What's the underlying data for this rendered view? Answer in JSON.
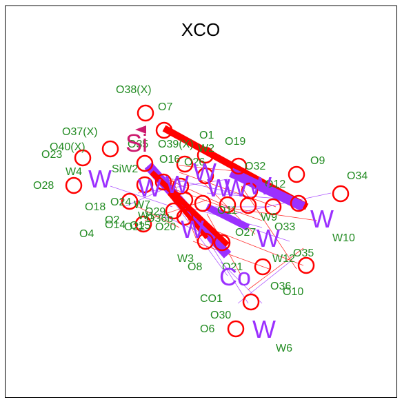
{
  "title": "XCO",
  "colors": {
    "oxygen_ring": "#ff0000",
    "label_green": "#228b22",
    "metal_purple": "#9b30ff",
    "silicon": "#cc1a6e",
    "bond_red": "#ff0000",
    "bond_purple": "#9b30ff"
  },
  "nodes": {
    "oxygen_labels": [
      "O38(X)",
      "O7",
      "O37(X)",
      "O40(X)",
      "O23",
      "O35",
      "O39(X)",
      "O1",
      "O19",
      "W2",
      "O16",
      "O26",
      "O32",
      "O9",
      "O34",
      "O12",
      "O28",
      "O18",
      "O24",
      "W7",
      "O14",
      "O2",
      "O22",
      "O4",
      "O15",
      "O29",
      "O20",
      "W1",
      "O11",
      "W9",
      "O33",
      "O27",
      "W12",
      "O35",
      "O36",
      "O10",
      "O21",
      "O8",
      "W3",
      "CO1",
      "O30",
      "O6",
      "W6",
      "W4",
      "W10",
      "SiW2",
      "O36b"
    ],
    "big_labels": [
      "W",
      "W",
      "W",
      "W",
      "W",
      "W",
      "W",
      "W",
      "W",
      "W",
      "Si",
      "Co",
      "W"
    ]
  }
}
